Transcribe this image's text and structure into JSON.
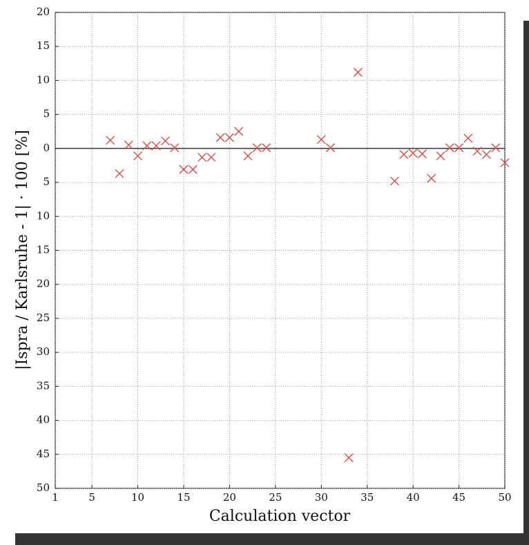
{
  "chart_data": {
    "type": "scatter",
    "x_label": "Calculation vector",
    "y_label": "|Ispra / Karlsruhe - 1| · 100 [%]",
    "xlim": [
      1,
      50
    ],
    "xticks": [
      1,
      5,
      10,
      15,
      20,
      25,
      30,
      35,
      40,
      45,
      50
    ],
    "ylim": [
      -50,
      20
    ],
    "yticks": [
      20,
      15,
      10,
      5,
      0,
      {
        "value": -5,
        "label": "5"
      },
      {
        "value": -10,
        "label": "10"
      },
      {
        "value": -15,
        "label": "15"
      },
      {
        "value": -20,
        "label": "20"
      },
      {
        "value": -25,
        "label": "25"
      },
      {
        "value": -30,
        "label": "30"
      },
      {
        "value": -35,
        "label": "35"
      },
      {
        "value": -40,
        "label": "40"
      },
      {
        "value": -45,
        "label": "45"
      },
      {
        "value": -50,
        "label": "50"
      }
    ],
    "grid": true,
    "series": [
      {
        "color": "#e0403a",
        "x": [
          7,
          8,
          9,
          10,
          11,
          12,
          13,
          14,
          15,
          16,
          17,
          18,
          19,
          20,
          21,
          22,
          23,
          24,
          30,
          31,
          33,
          34,
          38,
          39,
          40,
          41,
          42,
          43,
          44,
          45,
          46,
          47,
          48,
          49,
          50
        ],
        "values": [
          1.2,
          -3.7,
          0.5,
          -1.1,
          0.4,
          0.4,
          1.1,
          0.1,
          -3.1,
          -3.1,
          -1.3,
          -1.3,
          1.6,
          1.6,
          2.5,
          -1.1,
          0.1,
          0.1,
          1.3,
          0.1,
          -45.5,
          11.2,
          -4.8,
          -0.9,
          -0.7,
          -0.8,
          -4.4,
          -1.1,
          0.1,
          0.1,
          1.5,
          -0.4,
          -0.9,
          0.1,
          -2.1
        ]
      }
    ]
  }
}
